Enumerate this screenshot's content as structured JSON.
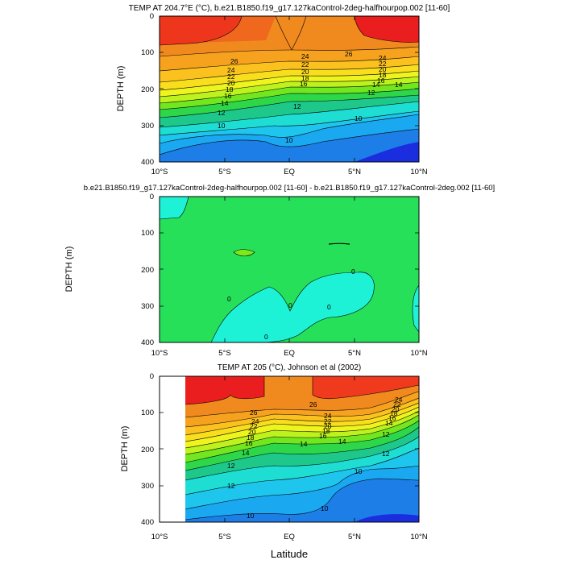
{
  "chart_data": [
    {
      "type": "contour",
      "title": "TEMP AT 204.7°E (°C), b.e21.B1850.f19_g17.127kaControl-2deg-halfhourpop.002 [11-60]",
      "ylabel": "DEPTH (m)",
      "xlabel": "",
      "xlim": [
        -10,
        10
      ],
      "ylim": [
        400,
        0
      ],
      "x_ticks": [
        "10°S",
        "5°S",
        "EQ",
        "5°N",
        "10°N"
      ],
      "y_ticks": [
        "0",
        "100",
        "200",
        "300",
        "400"
      ],
      "contour_labels": [
        "26",
        "26",
        "24",
        "24",
        "22",
        "22",
        "20",
        "20",
        "18",
        "18",
        "16",
        "16",
        "14",
        "14",
        "12",
        "12",
        "10",
        "10",
        "10",
        "24",
        "22",
        "20",
        "18",
        "16",
        "14",
        "12"
      ]
    },
    {
      "type": "contour",
      "title": "b.e21.B1850.f19_g17.127kaControl-2deg-halfhourpop.002 [11-60] - b.e21.B1850.f19_g17.127kaControl-2deg.002 [11-60]",
      "ylabel": "DEPTH (m)",
      "xlabel": "",
      "xlim": [
        -10,
        10
      ],
      "ylim": [
        400,
        0
      ],
      "x_ticks": [
        "10°S",
        "5°S",
        "EQ",
        "5°N",
        "10°N"
      ],
      "y_ticks": [
        "0",
        "100",
        "200",
        "300",
        "400"
      ],
      "contour_labels": [
        "0",
        "0",
        "0",
        "0",
        "0"
      ]
    },
    {
      "type": "contour",
      "title": "TEMP AT 205 (°C), Johnson et al (2002)",
      "ylabel": "DEPTH (m)",
      "xlabel": "Latitude",
      "xlim": [
        -10,
        10
      ],
      "ylim": [
        400,
        0
      ],
      "x_ticks": [
        "10°S",
        "5°S",
        "EQ",
        "5°N",
        "10°N"
      ],
      "y_ticks": [
        "0",
        "100",
        "200",
        "300",
        "400"
      ],
      "contour_labels": [
        "26",
        "24",
        "22",
        "20",
        "18",
        "16",
        "14",
        "12",
        "14",
        "12",
        "26",
        "24",
        "22",
        "20",
        "18",
        "16",
        "14",
        "12",
        "10",
        "10",
        "10",
        "24",
        "22",
        "20",
        "18",
        "16",
        "14",
        "12"
      ]
    }
  ]
}
